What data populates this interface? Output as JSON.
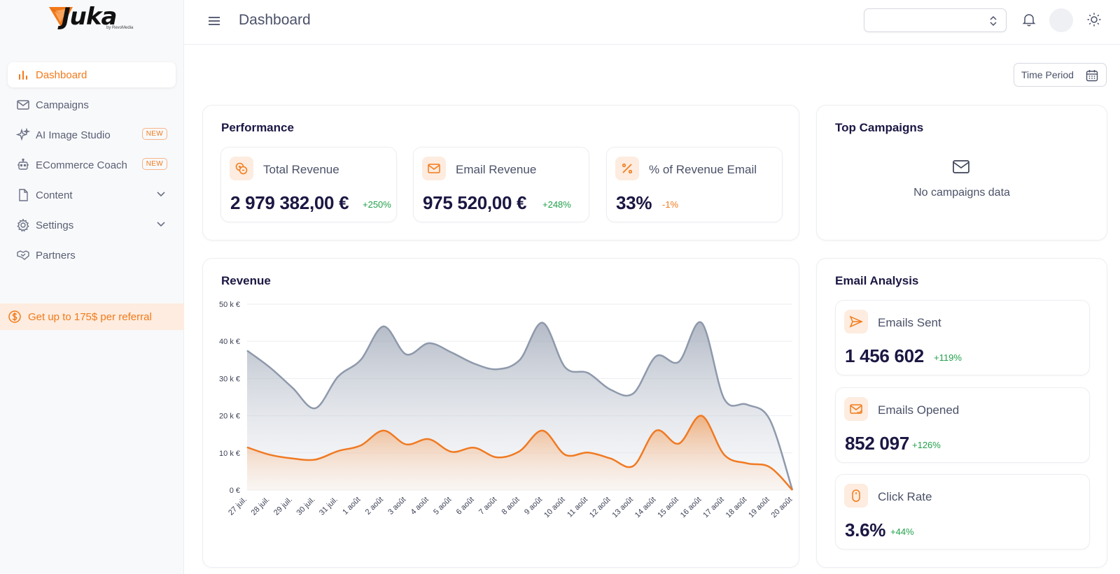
{
  "app": {
    "brand": "Juka",
    "brand_sub": "by RevoMedia"
  },
  "sidebar": {
    "items": [
      {
        "label": "Dashboard",
        "icon": "bar-chart-icon",
        "active": true
      },
      {
        "label": "Campaigns",
        "icon": "mail-icon"
      },
      {
        "label": "AI Image Studio",
        "icon": "sparkles-icon",
        "badge": "NEW"
      },
      {
        "label": "ECommerce Coach",
        "icon": "robot-icon",
        "badge": "NEW"
      },
      {
        "label": "Content",
        "icon": "document-icon",
        "expandable": true
      },
      {
        "label": "Settings",
        "icon": "gear-icon",
        "expandable": true
      },
      {
        "label": "Partners",
        "icon": "handshake-icon"
      }
    ],
    "referral": "Get up to 175$ per referral"
  },
  "header": {
    "title": "Dashboard",
    "store_select_value": ""
  },
  "time_period_label": "Time Period",
  "performance": {
    "title": "Performance",
    "stats": [
      {
        "label": "Total Revenue",
        "value": "2 979 382,00 €",
        "change": "+250%",
        "trend": "positive",
        "icon": "coins-icon"
      },
      {
        "label": "Email Revenue",
        "value": "975 520,00 €",
        "change": "+248%",
        "trend": "positive",
        "icon": "mail-icon"
      },
      {
        "label": "% of Revenue Email",
        "value": "33%",
        "change": "-1%",
        "trend": "negative",
        "icon": "percent-icon"
      }
    ]
  },
  "top_campaigns": {
    "title": "Top Campaigns",
    "empty_text": "No campaigns data"
  },
  "email_analysis": {
    "title": "Email Analysis",
    "stats": [
      {
        "label": "Emails Sent",
        "value": "1 456 602",
        "change": "+119%",
        "icon": "send-icon"
      },
      {
        "label": "Emails Opened",
        "value": "852 097",
        "change": "+126%",
        "icon": "mail-open-icon"
      },
      {
        "label": "Click Rate",
        "value": "3.6%",
        "change": "+44%",
        "icon": "mouse-icon"
      }
    ]
  },
  "colors": {
    "accent": "#f27a1a",
    "total_series": "#8e99ab",
    "email_series": "#f07a22",
    "positive": "#22a04b"
  },
  "chart_data": {
    "type": "area",
    "title": "Revenue",
    "xlabel": "",
    "ylabel": "",
    "ylim": [
      0,
      50000
    ],
    "y_ticks": [
      "0 €",
      "10 k €",
      "20 k €",
      "30 k €",
      "40 k €",
      "50 k €"
    ],
    "grid": true,
    "categories": [
      "27 juil.",
      "28 juil.",
      "29 juil.",
      "30 juil.",
      "31 juil.",
      "1 août",
      "2 août",
      "3 août",
      "4 août",
      "5 août",
      "6 août",
      "7 août",
      "8 août",
      "9 août",
      "10 août",
      "11 août",
      "12 août",
      "13 août",
      "14 août",
      "15 août",
      "16 août",
      "17 août",
      "18 août",
      "19 août",
      "20 août"
    ],
    "series": [
      {
        "values": [
          37500,
          33000,
          27500,
          22000,
          30500,
          35000,
          44000,
          36500,
          39500,
          37000,
          34000,
          32500,
          35000,
          45000,
          33000,
          31500,
          27000,
          26000,
          36000,
          34500,
          45000,
          24500,
          23000,
          19000,
          0
        ]
      },
      {
        "values": [
          11500,
          9500,
          8500,
          8200,
          10500,
          12000,
          16000,
          12300,
          13700,
          10300,
          11400,
          8800,
          10500,
          16000,
          9500,
          10100,
          8500,
          6500,
          16000,
          12500,
          20000,
          9500,
          7200,
          6200,
          0
        ]
      }
    ]
  }
}
